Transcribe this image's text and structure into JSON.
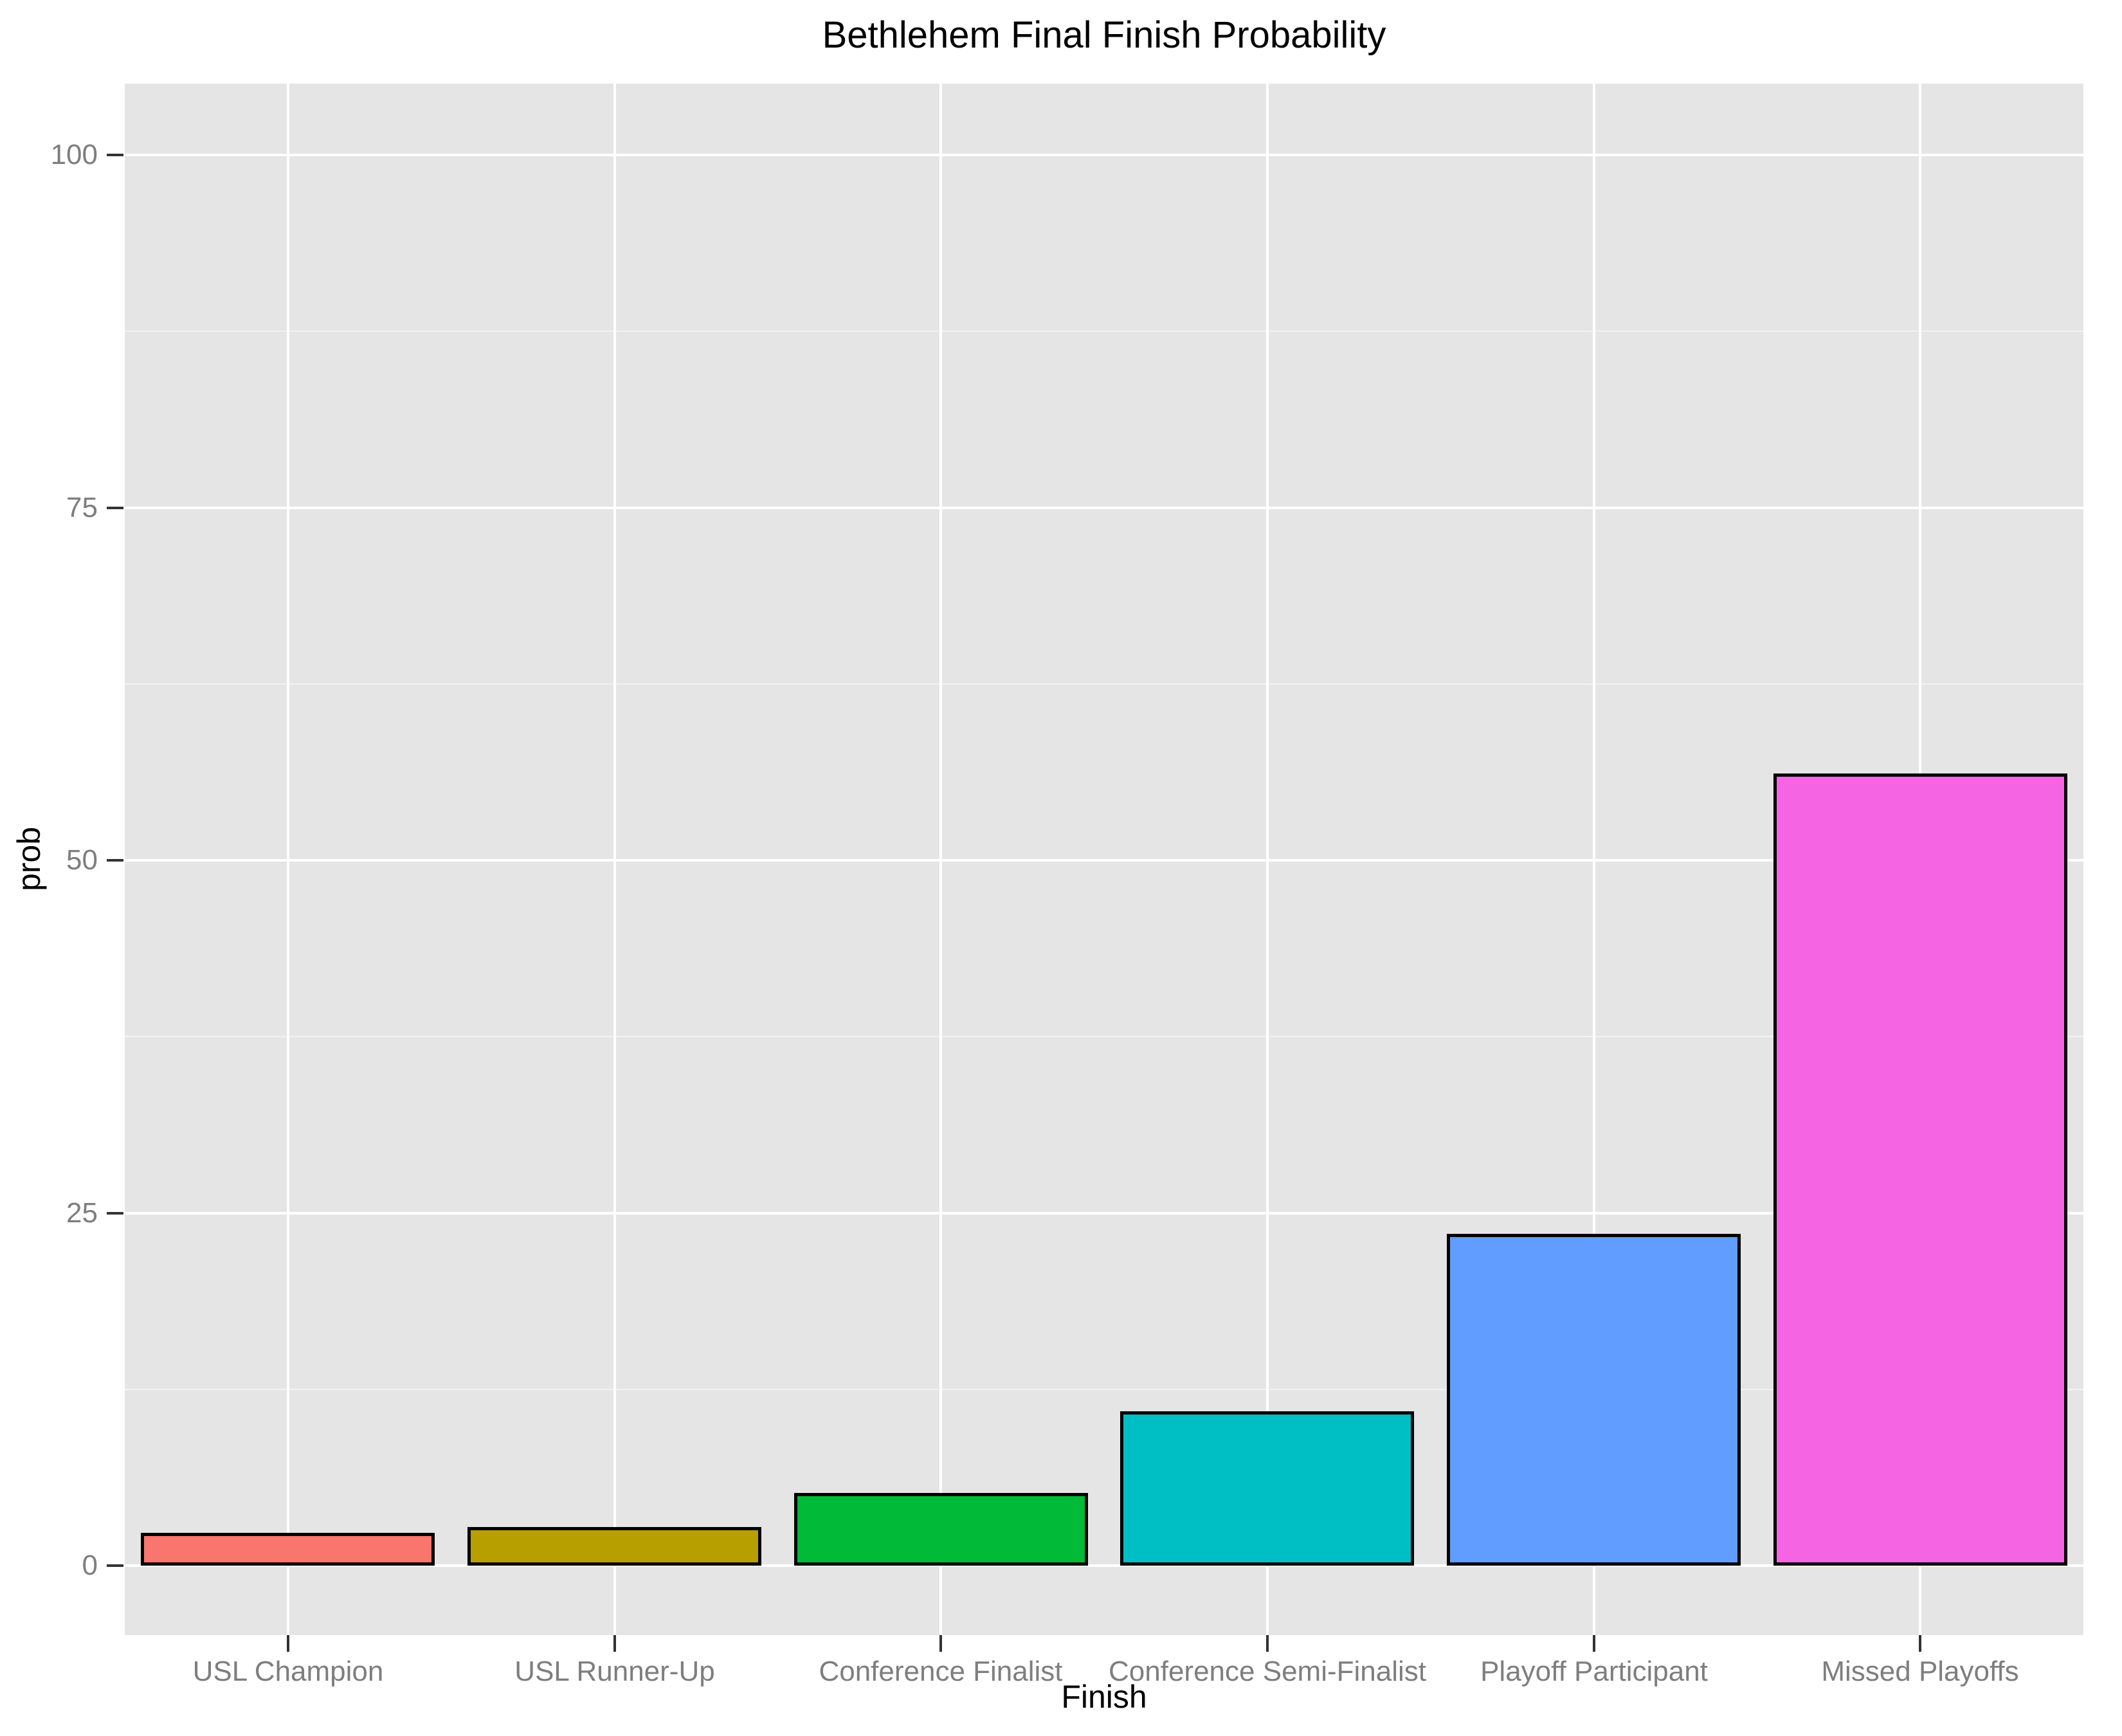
{
  "title": "Bethlehem Final Finish Probability",
  "axes": {
    "x_title": "Finish",
    "y_title": "prob"
  },
  "chart_data": {
    "type": "bar",
    "title": "Bethlehem Final Finish Probability",
    "xlabel": "Finish",
    "ylabel": "prob",
    "categories": [
      "USL Champion",
      "USL Runner-Up",
      "Conference Finalist",
      "Conference Semi-Finalist",
      "Playoff Participant",
      "Missed Playoffs"
    ],
    "values": [
      2.2,
      2.6,
      5,
      10.8,
      23.4,
      56
    ],
    "ylim": [
      0,
      100
    ],
    "y_major_ticks": [
      0,
      25,
      50,
      75,
      100
    ],
    "y_minor_ticks": [
      12.5,
      37.5,
      62.5,
      87.5
    ],
    "grid": "on",
    "legend": "none",
    "bar_colors": [
      "#F8766D",
      "#B79F00",
      "#00BA38",
      "#00BFC4",
      "#619CFF",
      "#F564E3"
    ],
    "bar_outline": "#000000",
    "panel_bg": "#E5E5E5",
    "grid_major_color": "#FFFFFF",
    "grid_minor_color": "#FFFFFF",
    "tick_label_color": "#7E7E7E",
    "axis_tick_color": "#333333"
  }
}
